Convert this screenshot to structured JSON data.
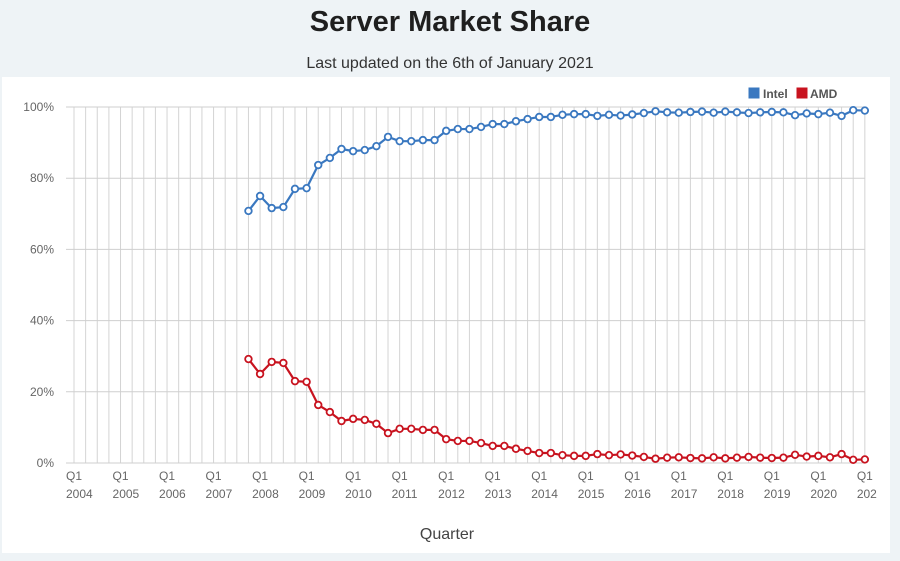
{
  "header": {
    "title": "Server Market Share",
    "subtitle": "Last updated on the 6th of January 2021"
  },
  "chart_data": {
    "type": "line",
    "title": "Server Market Share",
    "subtitle": "Last updated on the 6th of January 2021",
    "xlabel": "Quarter",
    "ylabel": "",
    "ylim": [
      0,
      100
    ],
    "yticks": [
      "0%",
      "20%",
      "40%",
      "60%",
      "80%",
      "100%"
    ],
    "xticks": [
      {
        "q": "Q1",
        "year": "2004"
      },
      {
        "q": "Q1",
        "year": "2005"
      },
      {
        "q": "Q1",
        "year": "2006"
      },
      {
        "q": "Q1",
        "year": "2007"
      },
      {
        "q": "Q1",
        "year": "2008"
      },
      {
        "q": "Q1",
        "year": "2009"
      },
      {
        "q": "Q1",
        "year": "2010"
      },
      {
        "q": "Q1",
        "year": "2011"
      },
      {
        "q": "Q1",
        "year": "2012"
      },
      {
        "q": "Q1",
        "year": "2013"
      },
      {
        "q": "Q1",
        "year": "2014"
      },
      {
        "q": "Q1",
        "year": "2015"
      },
      {
        "q": "Q1",
        "year": "2016"
      },
      {
        "q": "Q1",
        "year": "2017"
      },
      {
        "q": "Q1",
        "year": "2018"
      },
      {
        "q": "Q1",
        "year": "2019"
      },
      {
        "q": "Q1",
        "year": "2020"
      },
      {
        "q": "Q1",
        "year": "202"
      }
    ],
    "x_start": "Q4 2007",
    "x_end": "Q1 2021",
    "grid": true,
    "legend": "top-right",
    "series": [
      {
        "name": "Intel",
        "color": "#3a78c0",
        "values": [
          70.8,
          75.0,
          71.6,
          71.9,
          77.0,
          77.2,
          83.7,
          85.7,
          88.2,
          87.6,
          87.9,
          89.0,
          91.6,
          90.4,
          90.4,
          90.7,
          90.7,
          93.3,
          93.8,
          93.8,
          94.4,
          95.2,
          95.2,
          96.0,
          96.6,
          97.2,
          97.2,
          97.8,
          98.0,
          98.0,
          97.5,
          97.8,
          97.6,
          97.9,
          98.3,
          98.8,
          98.5,
          98.4,
          98.6,
          98.7,
          98.4,
          98.7,
          98.5,
          98.3,
          98.5,
          98.6,
          98.5,
          97.7,
          98.2,
          98.0,
          98.4,
          97.5,
          99.1,
          99.0
        ]
      },
      {
        "name": "AMD",
        "color": "#c8131f",
        "values": [
          29.2,
          25.0,
          28.4,
          28.1,
          23.0,
          22.8,
          16.3,
          14.3,
          11.8,
          12.4,
          12.1,
          11.0,
          8.4,
          9.6,
          9.6,
          9.3,
          9.3,
          6.7,
          6.2,
          6.2,
          5.6,
          4.8,
          4.8,
          4.0,
          3.4,
          2.8,
          2.8,
          2.2,
          2.0,
          2.0,
          2.5,
          2.2,
          2.4,
          2.1,
          1.7,
          1.2,
          1.5,
          1.6,
          1.4,
          1.3,
          1.6,
          1.3,
          1.5,
          1.7,
          1.5,
          1.4,
          1.5,
          2.3,
          1.8,
          2.0,
          1.6,
          2.5,
          0.9,
          1.0
        ]
      }
    ]
  }
}
